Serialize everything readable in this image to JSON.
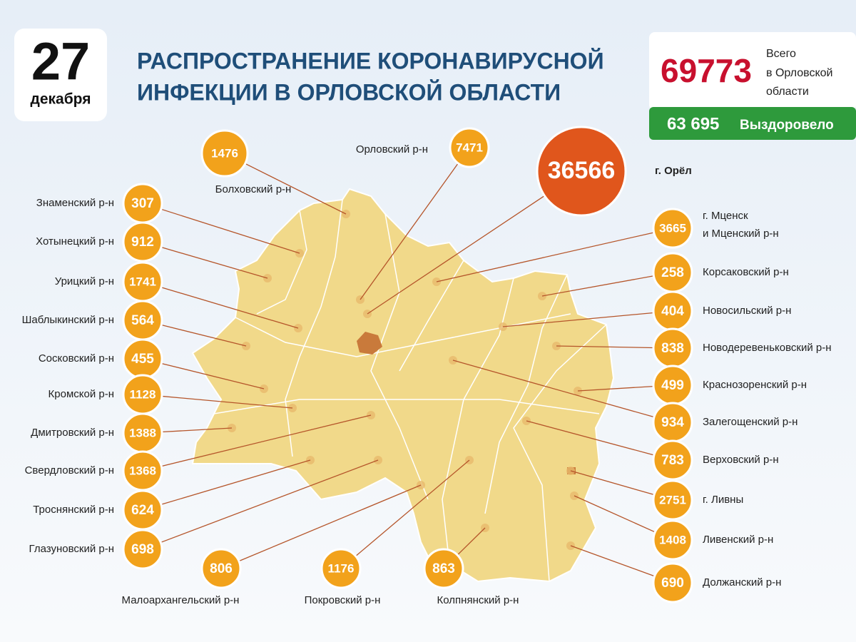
{
  "date": {
    "day": "27",
    "month": "декабря"
  },
  "title": {
    "line_1": "РАСПРОСТРАНЕНИЕ КОРОНАВИРУСНОЙ",
    "line_2": "ИНФЕКЦИИ В ОРЛОВСКОЙ ОБЛАСТИ"
  },
  "totals": {
    "cases": "69773",
    "cases_label_1": "Всего",
    "cases_label_2": "в Орловской",
    "cases_label_3": "области",
    "recovered": "63 695",
    "recovered_label": "Выздоровело"
  },
  "regions": [
    {
      "label": "Знаменский р-н",
      "value": "307"
    },
    {
      "label": "Хотынецкий р-н",
      "value": "912"
    },
    {
      "label": "Урицкий р-н",
      "value": "1741"
    },
    {
      "label": "Шаблыкинский р-н",
      "value": "564"
    },
    {
      "label": "Сосковский р-н",
      "value": "455"
    },
    {
      "label": "Кромской р-н",
      "value": "1128"
    },
    {
      "label": "Дмитровский р-н",
      "value": "1388"
    },
    {
      "label": "Свердловский р-н",
      "value": "1368"
    },
    {
      "label": "Троснянский р-н",
      "value": "624"
    },
    {
      "label": "Глазуновский р-н",
      "value": "698"
    },
    {
      "label": "Малоархангельский р-н",
      "value": "806"
    },
    {
      "label": "Покровский р-н",
      "value": "1176"
    },
    {
      "label": "Колпнянский р-н",
      "value": "863"
    },
    {
      "label": "Болховский р-н",
      "value": "1476"
    },
    {
      "label": "Орловский р-н",
      "value": "7471"
    },
    {
      "label": "г. Орёл",
      "value": "36566"
    },
    {
      "label": "г. Мценск",
      "label_2": "и Мценский р-н",
      "value": "3665"
    },
    {
      "label": "Корсаковский р-н",
      "value": "258"
    },
    {
      "label": "Новосильский р-н",
      "value": "404"
    },
    {
      "label": "Новодеревеньковский р-н",
      "value": "838"
    },
    {
      "label": "Краснозоренский р-н",
      "value": "499"
    },
    {
      "label": "Залегощенский р-н",
      "value": "934"
    },
    {
      "label": "Верховский р-н",
      "value": "783"
    },
    {
      "label": "г. Ливны",
      "value": "2751"
    },
    {
      "label": "Ливенский р-н",
      "value": "1408"
    },
    {
      "label": "Должанский р-н",
      "value": "690"
    }
  ]
}
